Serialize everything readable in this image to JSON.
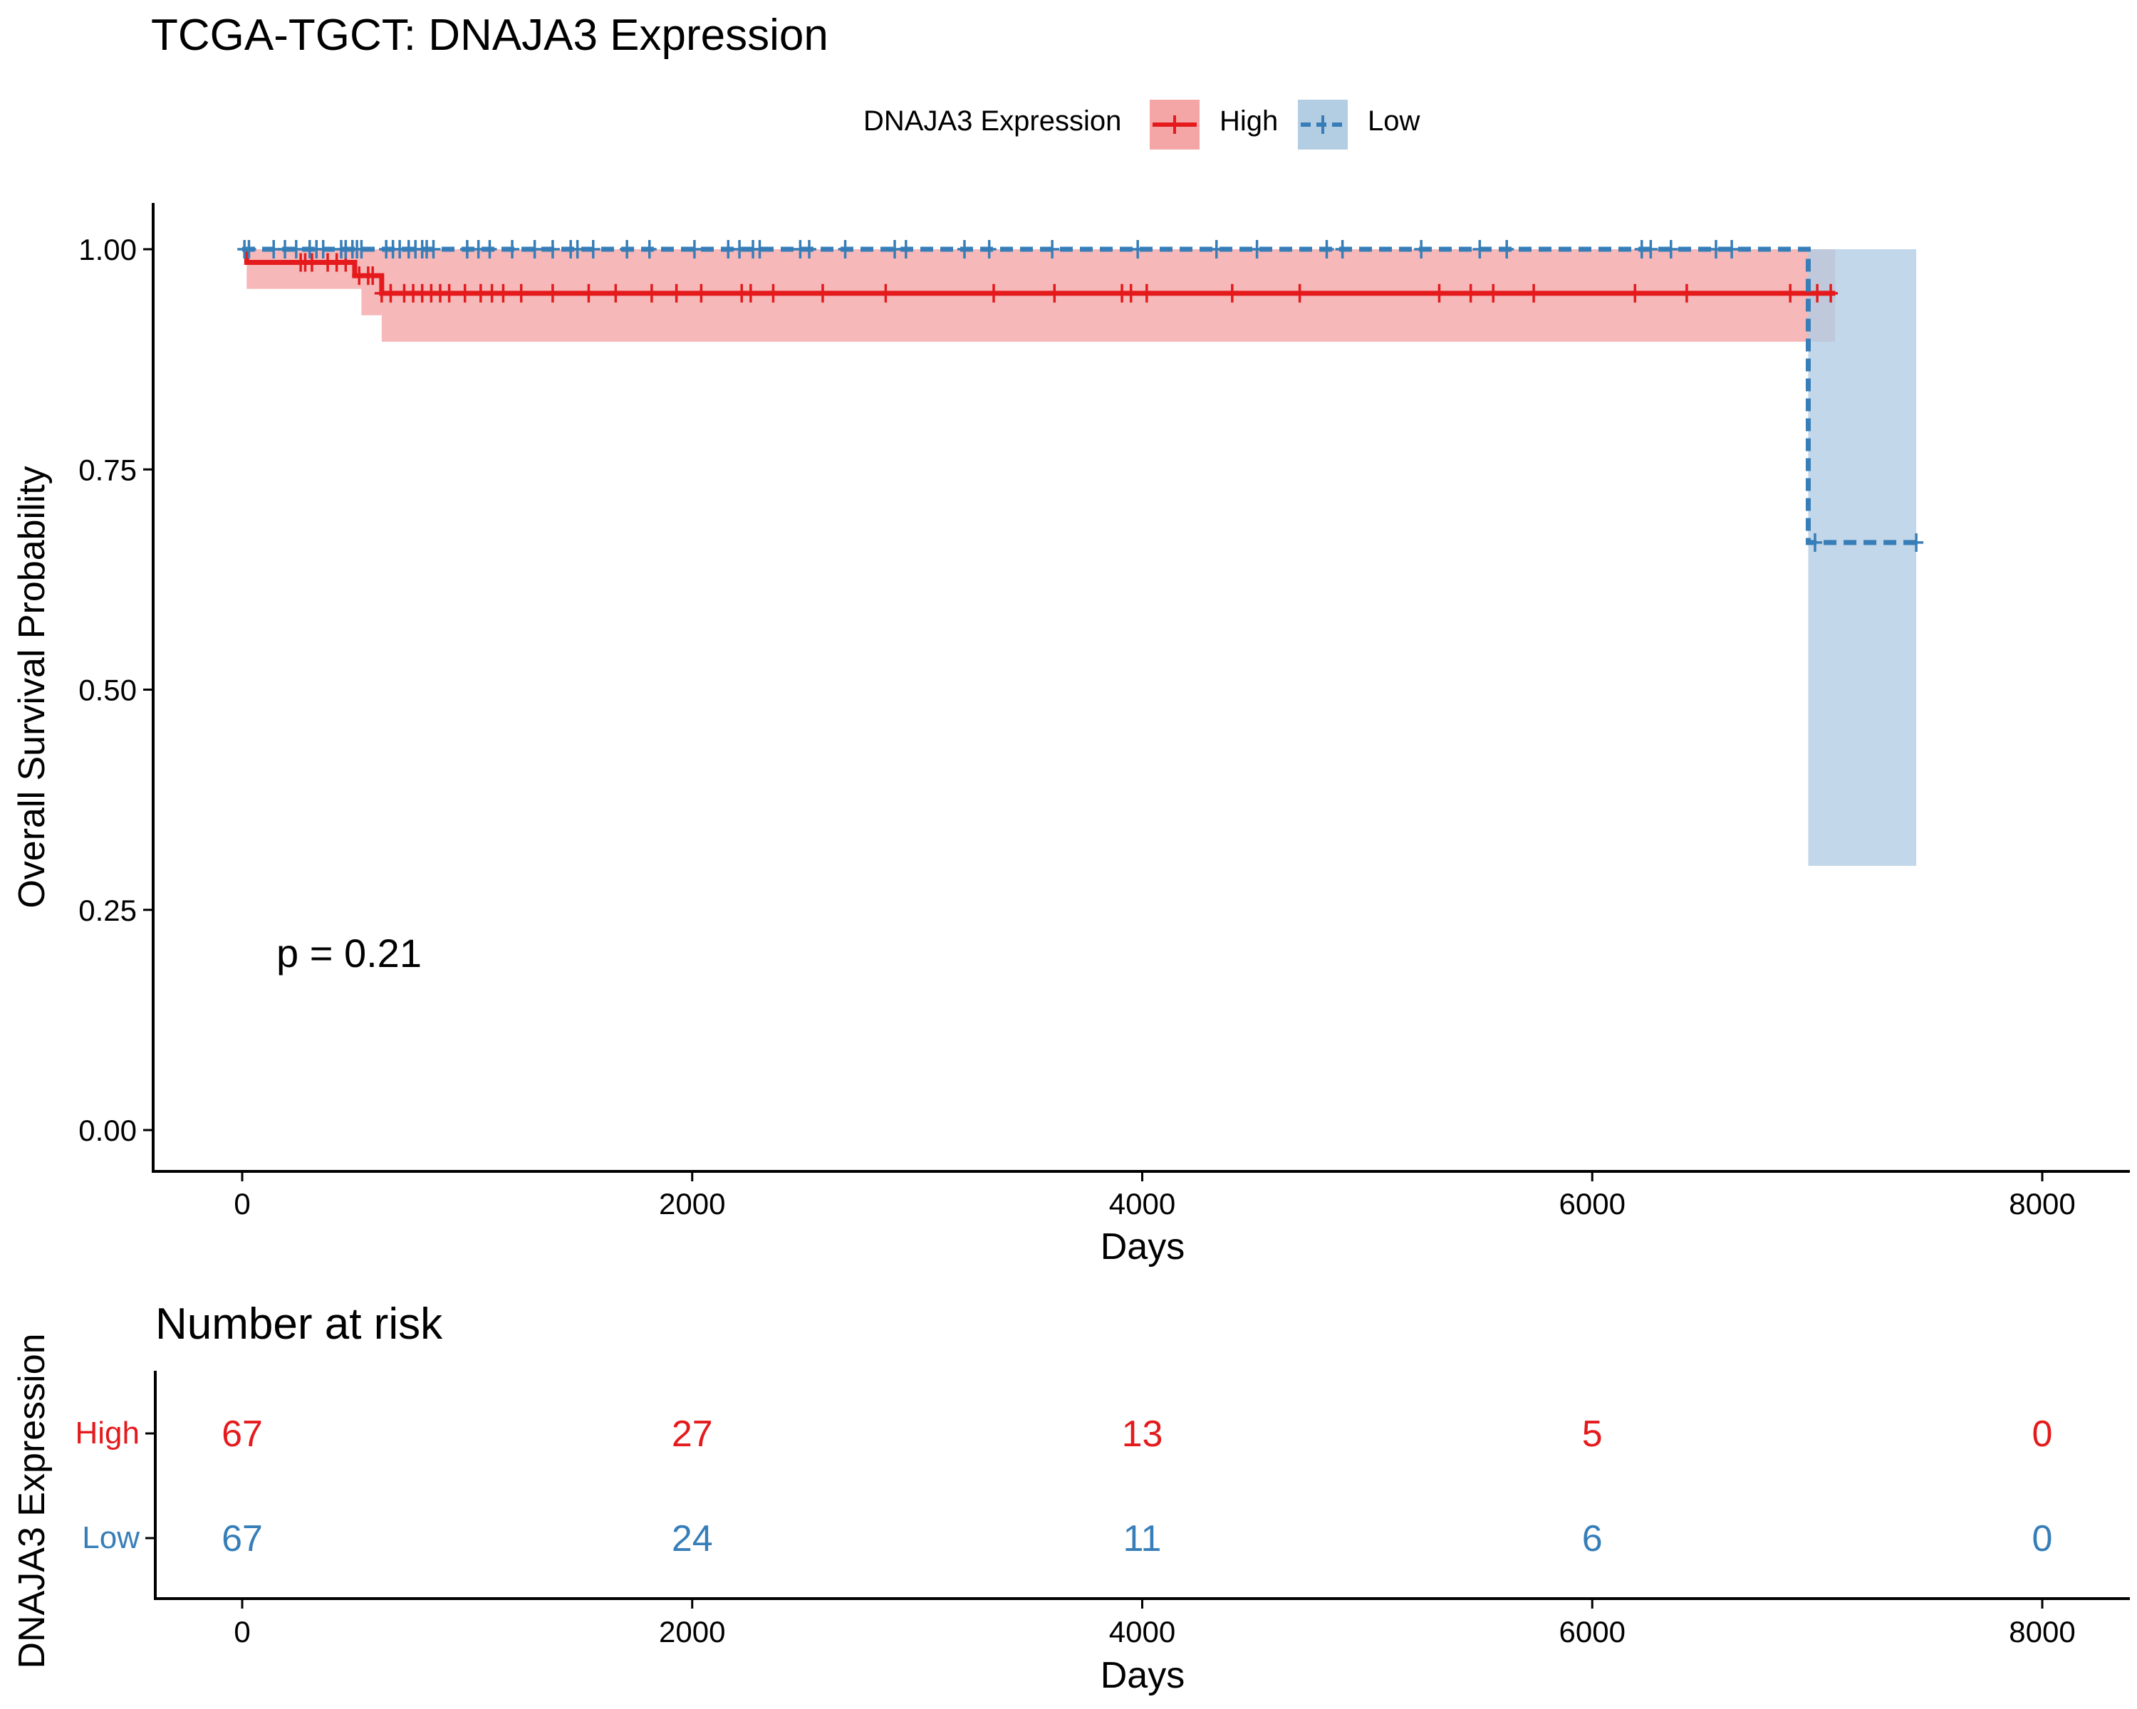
{
  "title": "TCGA-TGCT: DNAJA3 Expression",
  "legend": {
    "title": "DNAJA3 Expression",
    "items": [
      {
        "label": "High",
        "color": "#E41A1C",
        "fill": "#F4A6A7",
        "linestyle": "solid"
      },
      {
        "label": "Low",
        "color": "#377EB8",
        "fill": "#B3CDE3",
        "linestyle": "dashed"
      }
    ]
  },
  "chart_data": [
    {
      "type": "line",
      "subtype": "kaplan-meier",
      "title": "TCGA-TGCT: DNAJA3 Expression",
      "xlabel": "Days",
      "ylabel": "Overall Survival Probability",
      "xlim": [
        -400,
        8400
      ],
      "ylim": [
        -0.05,
        1.05
      ],
      "x_ticks": [
        0,
        2000,
        4000,
        6000,
        8000
      ],
      "y_ticks": [
        0,
        0.25,
        0.5,
        0.75,
        1.0
      ],
      "y_tick_labels": [
        "0.00",
        "0.25",
        "0.50",
        "0.75",
        "1.00"
      ],
      "grid": false,
      "legend_position": "top",
      "annotation": "p = 0.21",
      "series": [
        {
          "name": "High",
          "color": "#E41A1C",
          "steps": [
            [
              0,
              1.0
            ],
            [
              20,
              0.985
            ],
            [
              500,
              0.97
            ],
            [
              620,
              0.95
            ],
            [
              7080,
              0.95
            ]
          ],
          "ci": [
            [
              20,
              0.955,
              1.0
            ],
            [
              530,
              0.925,
              1.0
            ],
            [
              620,
              0.895,
              1.0
            ],
            [
              7080,
              0.895,
              1.0
            ]
          ],
          "censor_times": [
            260,
            280,
            310,
            380,
            420,
            460,
            520,
            560,
            580,
            620,
            660,
            720,
            760,
            800,
            840,
            880,
            920,
            990,
            1060,
            1110,
            1160,
            1240,
            1380,
            1540,
            1660,
            1820,
            1930,
            2040,
            2220,
            2260,
            2360,
            2580,
            2860,
            3340,
            3610,
            3910,
            3950,
            4020,
            4400,
            4700,
            5320,
            5460,
            5560,
            5740,
            6190,
            6420,
            6880,
            7000,
            7060
          ]
        },
        {
          "name": "Low",
          "color": "#377EB8",
          "steps": [
            [
              0,
              1.0
            ],
            [
              6960,
              1.0
            ],
            [
              6960,
              0.667
            ],
            [
              7440,
              0.667
            ]
          ],
          "ci": [
            [
              0,
              1.0,
              1.0
            ],
            [
              6960,
              0.3,
              1.0
            ],
            [
              7440,
              0.3,
              1.0
            ]
          ],
          "censor_times": [
            10,
            30,
            140,
            190,
            240,
            300,
            330,
            360,
            440,
            460,
            490,
            510,
            530,
            640,
            670,
            700,
            740,
            770,
            800,
            820,
            850,
            1000,
            1050,
            1100,
            1200,
            1300,
            1380,
            1460,
            1490,
            1560,
            1710,
            1810,
            2010,
            2160,
            2210,
            2270,
            2300,
            2480,
            2520,
            2680,
            2900,
            2950,
            3210,
            3320,
            3600,
            3980,
            4330,
            4510,
            4820,
            4890,
            5240,
            5500,
            5620,
            6220,
            6260,
            6350,
            6550,
            6620,
            6990,
            7440
          ]
        }
      ]
    },
    {
      "type": "table",
      "title": "Number at risk",
      "xlabel": "Days",
      "ylabel": "DNAJA3 Expression",
      "x": [
        0,
        2000,
        4000,
        6000,
        8000
      ],
      "rows": [
        {
          "name": "High",
          "color": "#E41A1C",
          "values": [
            67,
            27,
            13,
            5,
            0
          ]
        },
        {
          "name": "Low",
          "color": "#377EB8",
          "values": [
            67,
            24,
            11,
            6,
            0
          ]
        }
      ]
    }
  ]
}
